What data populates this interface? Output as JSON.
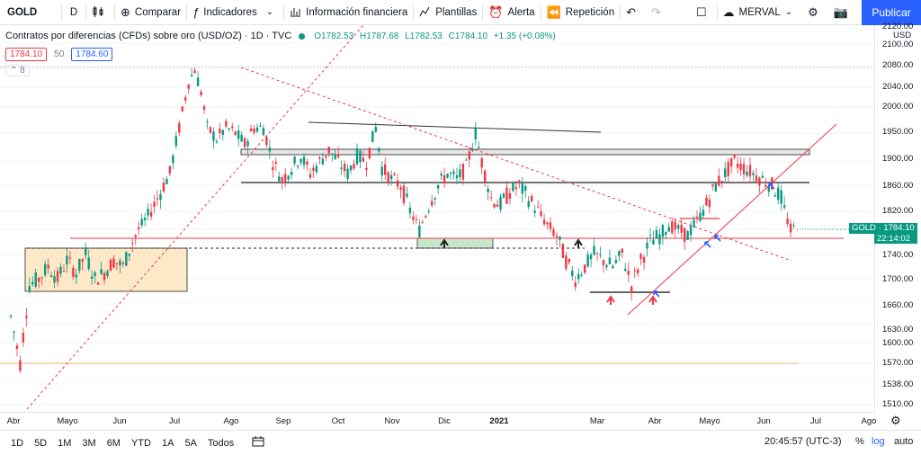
{
  "toolbar": {
    "symbol": "GOLD",
    "interval": "D",
    "compare": "Comparar",
    "indicators": "Indicadores",
    "financials": "Información financiera",
    "templates": "Plantillas",
    "alert": "Alerta",
    "replay": "Repetición",
    "layout_name": "MERVAL",
    "publish": "Publicar",
    "icons": {
      "bar_style": "candles-icon",
      "compare": "plus-circle-icon",
      "indicators": "fx-icon",
      "financials": "bar-chart-icon",
      "templates": "templates-icon",
      "alert": "alarm-clock-icon",
      "replay": "replay-icon",
      "undo": "undo-icon",
      "redo": "redo-icon",
      "fullscreen": "square-icon",
      "cloud": "cloud-icon",
      "settings": "gear-icon",
      "camera": "camera-icon"
    }
  },
  "legend": {
    "title": "Contratos por diferencias (CFDs) sobre oro (USD/OZ) · 1D · TVC",
    "open": "O1782.53",
    "high": "H1787.68",
    "low": "L1782.53",
    "close": "C1784.10",
    "change": "+1.35 (+0.08%)",
    "sell_price": "1784.10",
    "spread": "50",
    "buy_price": "1784.60",
    "collapsed_count": "8"
  },
  "price_axis": {
    "currency": "USD",
    "labels": [
      "2120.00",
      "2100.00",
      "2080.00",
      "2040.00",
      "2000.00",
      "1950.00",
      "1900.00",
      "1860.00",
      "1820.00",
      "1780.00",
      "1740.00",
      "1700.00",
      "1660.00",
      "1630.00",
      "1600.00",
      "1570.00",
      "1538.00",
      "1510.00"
    ],
    "last_price_tag": "GOLD · 1784.10",
    "countdown": "22:14:02"
  },
  "time_axis": {
    "labels": [
      "Abr",
      "Mayo",
      "Jun",
      "Jul",
      "Ago",
      "Sep",
      "Oct",
      "Nov",
      "Dic",
      "2021",
      "Mar",
      "Abr",
      "Mayo",
      "Jun",
      "Jul",
      "Ago"
    ]
  },
  "bottombar": {
    "ranges": [
      "1D",
      "5D",
      "1M",
      "3M",
      "6M",
      "YTD",
      "1A",
      "5A",
      "Todos"
    ],
    "clock": "20:45:57 (UTC-3)",
    "percent": "%",
    "log": "log",
    "auto": "auto"
  },
  "colors": {
    "up": "#089981",
    "down": "#f23645",
    "accent": "#2962ff",
    "zone_fill": "#fde9c8"
  },
  "chart_data": {
    "type": "candlestick",
    "symbol": "GOLD",
    "timeframe": "1D",
    "x_range": [
      "Abr 2020",
      "Ago 2021"
    ],
    "y_range": [
      1500,
      2130
    ],
    "path": [
      [
        0,
        1640
      ],
      [
        6,
        1570
      ],
      [
        12,
        1690
      ],
      [
        18,
        1700
      ],
      [
        24,
        1720
      ],
      [
        30,
        1700
      ],
      [
        36,
        1730
      ],
      [
        42,
        1710
      ],
      [
        48,
        1740
      ],
      [
        54,
        1700
      ],
      [
        60,
        1710
      ],
      [
        66,
        1730
      ],
      [
        72,
        1720
      ],
      [
        78,
        1760
      ],
      [
        84,
        1790
      ],
      [
        90,
        1820
      ],
      [
        96,
        1850
      ],
      [
        102,
        1880
      ],
      [
        108,
        1960
      ],
      [
        114,
        2050
      ],
      [
        118,
        2075
      ],
      [
        122,
        2030
      ],
      [
        126,
        1960
      ],
      [
        132,
        1940
      ],
      [
        138,
        1960
      ],
      [
        144,
        1950
      ],
      [
        150,
        1930
      ],
      [
        156,
        1960
      ],
      [
        162,
        1960
      ],
      [
        168,
        1900
      ],
      [
        174,
        1870
      ],
      [
        180,
        1890
      ],
      [
        186,
        1910
      ],
      [
        192,
        1880
      ],
      [
        198,
        1900
      ],
      [
        204,
        1920
      ],
      [
        210,
        1900
      ],
      [
        216,
        1880
      ],
      [
        222,
        1910
      ],
      [
        228,
        1900
      ],
      [
        234,
        1960
      ],
      [
        238,
        1890
      ],
      [
        244,
        1870
      ],
      [
        250,
        1860
      ],
      [
        256,
        1820
      ],
      [
        262,
        1780
      ],
      [
        268,
        1830
      ],
      [
        274,
        1860
      ],
      [
        280,
        1880
      ],
      [
        286,
        1870
      ],
      [
        292,
        1890
      ],
      [
        298,
        1950
      ],
      [
        302,
        1900
      ],
      [
        308,
        1840
      ],
      [
        314,
        1830
      ],
      [
        320,
        1850
      ],
      [
        326,
        1860
      ],
      [
        332,
        1840
      ],
      [
        338,
        1820
      ],
      [
        344,
        1790
      ],
      [
        350,
        1770
      ],
      [
        356,
        1730
      ],
      [
        362,
        1700
      ],
      [
        368,
        1720
      ],
      [
        374,
        1740
      ],
      [
        380,
        1730
      ],
      [
        386,
        1720
      ],
      [
        392,
        1740
      ],
      [
        398,
        1690
      ],
      [
        404,
        1730
      ],
      [
        410,
        1760
      ],
      [
        416,
        1770
      ],
      [
        422,
        1790
      ],
      [
        428,
        1780
      ],
      [
        434,
        1770
      ],
      [
        440,
        1800
      ],
      [
        446,
        1830
      ],
      [
        452,
        1860
      ],
      [
        458,
        1880
      ],
      [
        464,
        1900
      ],
      [
        470,
        1890
      ],
      [
        476,
        1880
      ],
      [
        482,
        1870
      ],
      [
        488,
        1860
      ],
      [
        494,
        1840
      ],
      [
        500,
        1780
      ],
      [
        504,
        1784
      ]
    ],
    "annotations": {
      "horizontal_levels": [
        1920,
        1860,
        1760,
        1750,
        1680,
        1575,
        2080
      ],
      "zones": [
        {
          "from": 1680,
          "to": 1750,
          "label": ""
        }
      ],
      "arrows": [
        "up",
        "up",
        "up",
        "up"
      ]
    }
  }
}
